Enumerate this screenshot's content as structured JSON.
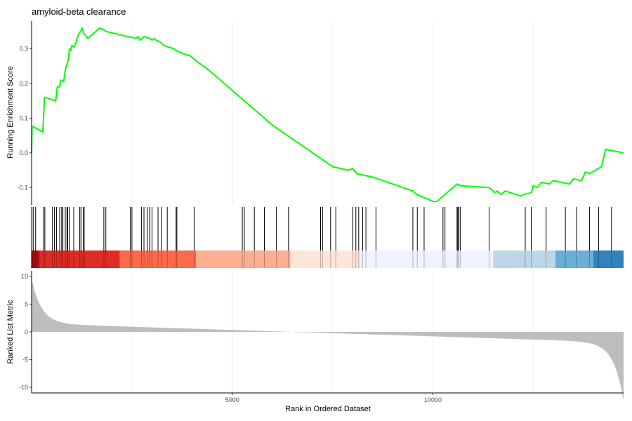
{
  "chart_data": {
    "type": "line",
    "title": "amyloid-beta clearance",
    "ylabel_top": "Running Enrichment Score",
    "ylabel_bottom": "Ranked List Metric",
    "xlabel": "Rank in Ordered Dataset",
    "xlim": [
      0,
      14750
    ],
    "top_ylim": [
      -0.15,
      0.38
    ],
    "top_yticks": [
      -0.1,
      0.0,
      0.1,
      0.2,
      0.3
    ],
    "top_ytick_labels": [
      "-0.1",
      "0.0",
      "0.1",
      "0.2",
      "0.3"
    ],
    "bottom_ylim": [
      -11,
      11
    ],
    "bottom_yticks": [
      10,
      5,
      0,
      -5,
      -10
    ],
    "bottom_ytick_labels": [
      "10",
      "5",
      "0",
      "-5",
      "-10"
    ],
    "xticks": [
      5000,
      10000
    ],
    "xtick_labels": [
      "5000",
      "10000"
    ],
    "grid": true,
    "colors": {
      "curve": "#00ff00",
      "hits": "#000000",
      "metric_fill": "#bebebe",
      "axis": "#000000",
      "grid": "#ebebeb",
      "heat_bands": [
        "#a50f15",
        "#de2d26",
        "#fb6a4a",
        "#fcae91",
        "#fee5d9",
        "#eff3ff",
        "#bdd7e7",
        "#6baed6",
        "#3182bd"
      ]
    },
    "running_score": {
      "x": [
        0,
        10,
        50,
        280,
        320,
        340,
        600,
        620,
        640,
        700,
        720,
        800,
        840,
        920,
        940,
        980,
        1000,
        1050,
        1100,
        1140,
        1240,
        1260,
        1300,
        1340,
        1400,
        1700,
        1800,
        1850,
        2600,
        2650,
        2700,
        2800,
        2950,
        3000,
        3050,
        3100,
        3200,
        3300,
        3400,
        3550,
        3600,
        3700,
        3800,
        3950,
        4050,
        4100,
        4400,
        4600,
        5000,
        5200,
        5300,
        5600,
        6000,
        6500,
        7000,
        7500,
        7900,
        8000,
        8100,
        8500,
        9000,
        9500,
        9600,
        9700,
        9800,
        10000,
        10100,
        10200,
        10600,
        10700,
        11400,
        11500,
        11550,
        11600,
        11700,
        11800,
        12200,
        12250,
        12450,
        12500,
        12600,
        12700,
        12900,
        13000,
        13400,
        13500,
        13700,
        13800,
        13900,
        14200,
        14300,
        14750
      ],
      "y": [
        0.0,
        0.075,
        0.075,
        0.06,
        0.16,
        0.16,
        0.15,
        0.17,
        0.19,
        0.19,
        0.21,
        0.205,
        0.24,
        0.27,
        0.3,
        0.295,
        0.31,
        0.305,
        0.315,
        0.335,
        0.355,
        0.36,
        0.345,
        0.34,
        0.33,
        0.36,
        0.355,
        0.35,
        0.33,
        0.335,
        0.325,
        0.335,
        0.33,
        0.325,
        0.33,
        0.325,
        0.32,
        0.31,
        0.305,
        0.3,
        0.295,
        0.29,
        0.285,
        0.28,
        0.27,
        0.265,
        0.24,
        0.22,
        0.18,
        0.16,
        0.15,
        0.12,
        0.08,
        0.04,
        0.0,
        -0.04,
        -0.05,
        -0.045,
        -0.06,
        -0.07,
        -0.09,
        -0.11,
        -0.12,
        -0.125,
        -0.13,
        -0.14,
        -0.14,
        -0.13,
        -0.09,
        -0.095,
        -0.1,
        -0.11,
        -0.115,
        -0.11,
        -0.12,
        -0.11,
        -0.125,
        -0.12,
        -0.115,
        -0.095,
        -0.1,
        -0.085,
        -0.09,
        -0.08,
        -0.09,
        -0.075,
        -0.08,
        -0.055,
        -0.06,
        -0.04,
        0.01,
        0.0
      ]
    },
    "hit_ranks": [
      40,
      100,
      300,
      330,
      520,
      570,
      620,
      700,
      750,
      780,
      840,
      880,
      900,
      940,
      1050,
      1200,
      1230,
      1290,
      1310,
      1800,
      1850,
      2460,
      2500,
      2740,
      2800,
      2880,
      2940,
      3000,
      3150,
      3230,
      3380,
      3600,
      3620,
      4050,
      5250,
      5300,
      5550,
      5800,
      6100,
      6400,
      7200,
      7250,
      7450,
      7580,
      8000,
      8080,
      8150,
      8250,
      8330,
      8580,
      9500,
      9610,
      9780,
      10250,
      10300,
      10600,
      10620,
      10640,
      10680,
      11400,
      12300,
      12450,
      12820,
      13300,
      13580,
      13900,
      14130,
      14450
    ]
  }
}
